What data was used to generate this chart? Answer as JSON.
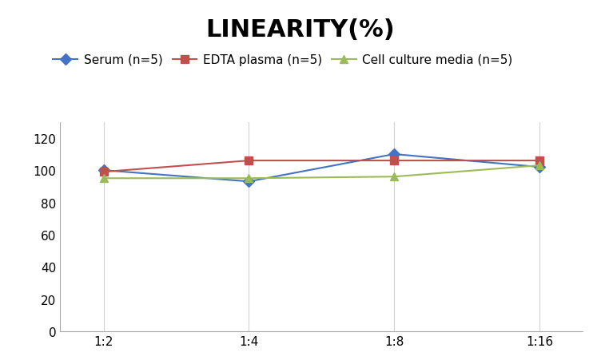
{
  "title": "LINEARITY(%)",
  "x_labels": [
    "1:2",
    "1:4",
    "1:8",
    "1:16"
  ],
  "series": [
    {
      "label": "Serum (n=5)",
      "values": [
        100,
        93,
        110,
        102
      ],
      "color": "#4472C4",
      "marker": "D",
      "linestyle": "-"
    },
    {
      "label": "EDTA plasma (n=5)",
      "values": [
        99,
        106,
        106,
        106
      ],
      "color": "#C0504D",
      "marker": "s",
      "linestyle": "-"
    },
    {
      "label": "Cell culture media (n=5)",
      "values": [
        95,
        95,
        96,
        103
      ],
      "color": "#9BBB59",
      "marker": "^",
      "linestyle": "-"
    }
  ],
  "ylim": [
    0,
    130
  ],
  "yticks": [
    0,
    20,
    40,
    60,
    80,
    100,
    120
  ],
  "title_fontsize": 22,
  "legend_fontsize": 11,
  "tick_fontsize": 11,
  "background_color": "#ffffff",
  "grid_color": "#d3d3d3"
}
